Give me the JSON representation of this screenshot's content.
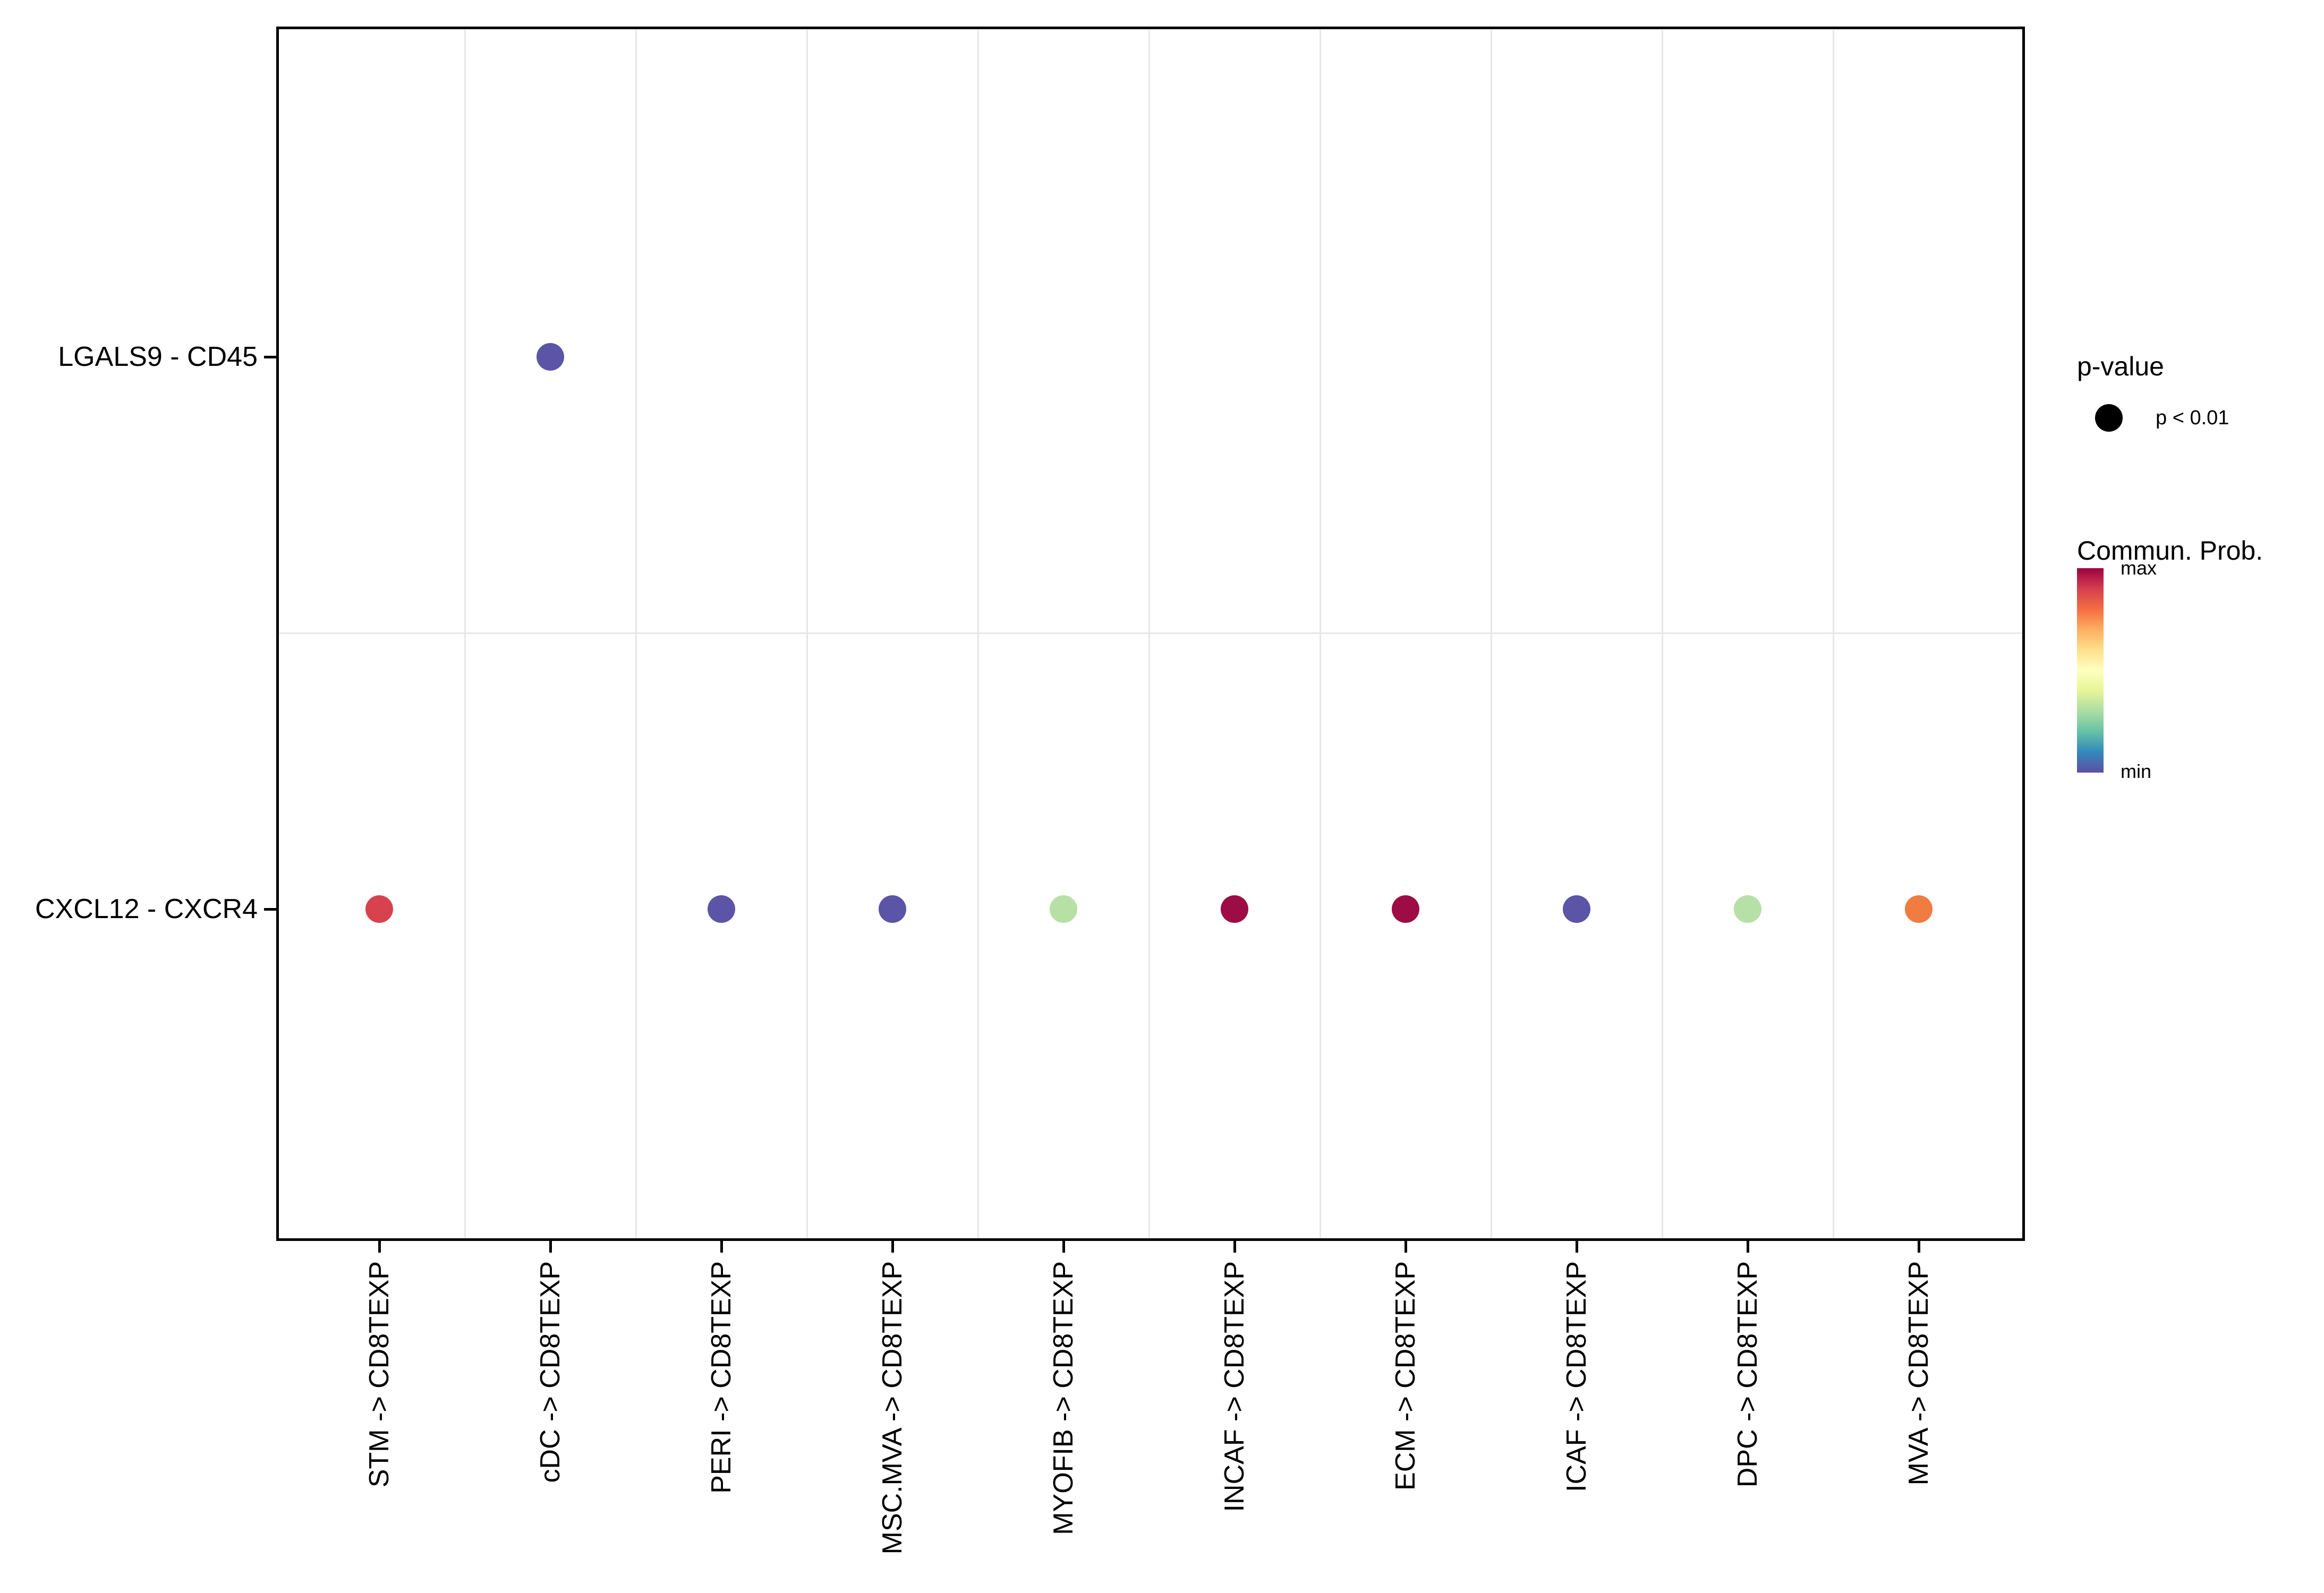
{
  "chart_data": {
    "type": "scatter",
    "subtype": "categorical dot plot (cell-cell communication bubble plot)",
    "title": "",
    "xlabel": "",
    "ylabel": "",
    "x_categories": [
      "STM -> CD8TEXP",
      "cDC -> CD8TEXP",
      "PERI -> CD8TEXP",
      "MSC.MVA -> CD8TEXP",
      "MYOFIB -> CD8TEXP",
      "INCAF -> CD8TEXP",
      "ECM -> CD8TEXP",
      "ICAF -> CD8TEXP",
      "DPC -> CD8TEXP",
      "MVA -> CD8TEXP"
    ],
    "y_categories": [
      "LGALS9 - CD45",
      "CXCL12 - CXCR4"
    ],
    "points": [
      {
        "x": "cDC -> CD8TEXP",
        "y": "LGALS9 - CD45",
        "color": "#5c54a6",
        "commun_prob_norm": 0.02,
        "p_value": "p < 0.01"
      },
      {
        "x": "STM -> CD8TEXP",
        "y": "CXCL12 - CXCR4",
        "color": "#d6434e",
        "commun_prob_norm": 0.9,
        "p_value": "p < 0.01"
      },
      {
        "x": "PERI -> CD8TEXP",
        "y": "CXCL12 - CXCR4",
        "color": "#5c54a6",
        "commun_prob_norm": 0.03,
        "p_value": "p < 0.01"
      },
      {
        "x": "MSC.MVA -> CD8TEXP",
        "y": "CXCL12 - CXCR4",
        "color": "#5c54a6",
        "commun_prob_norm": 0.03,
        "p_value": "p < 0.01"
      },
      {
        "x": "MYOFIB -> CD8TEXP",
        "y": "CXCL12 - CXCR4",
        "color": "#b7e0a7",
        "commun_prob_norm": 0.35,
        "p_value": "p < 0.01"
      },
      {
        "x": "INCAF -> CD8TEXP",
        "y": "CXCL12 - CXCR4",
        "color": "#9e0c45",
        "commun_prob_norm": 1.0,
        "p_value": "p < 0.01"
      },
      {
        "x": "ECM -> CD8TEXP",
        "y": "CXCL12 - CXCR4",
        "color": "#9e0c45",
        "commun_prob_norm": 1.0,
        "p_value": "p < 0.01"
      },
      {
        "x": "ICAF -> CD8TEXP",
        "y": "CXCL12 - CXCR4",
        "color": "#5c54a6",
        "commun_prob_norm": 0.03,
        "p_value": "p < 0.01"
      },
      {
        "x": "DPC -> CD8TEXP",
        "y": "CXCL12 - CXCR4",
        "color": "#b7e0a7",
        "commun_prob_norm": 0.35,
        "p_value": "p < 0.01"
      },
      {
        "x": "MVA -> CD8TEXP",
        "y": "CXCL12 - CXCR4",
        "color": "#f07c42",
        "commun_prob_norm": 0.78,
        "p_value": "p < 0.01"
      }
    ],
    "legend": {
      "size_legend": {
        "title": "p-value",
        "items": [
          {
            "label": "p < 0.01",
            "color": "#000000"
          }
        ]
      },
      "color_legend": {
        "title": "Commun. Prob.",
        "max_label": "max",
        "min_label": "min",
        "gradient_top_to_bottom": [
          "#9E0142",
          "#D53E4F",
          "#F46D43",
          "#FDAE61",
          "#FEE08B",
          "#FFFFBF",
          "#E6F598",
          "#ABDDA4",
          "#66C2A5",
          "#3288BD",
          "#5E4FA2"
        ]
      }
    },
    "layout_hints": {
      "x_tick_label_rotation_deg": 90,
      "grid": "faint vertical lines midway between columns; one faint horizontal line midway between rows",
      "panel_border_color": "#000000",
      "grid_color": "#e7e7e7",
      "legend_position": "right"
    }
  }
}
